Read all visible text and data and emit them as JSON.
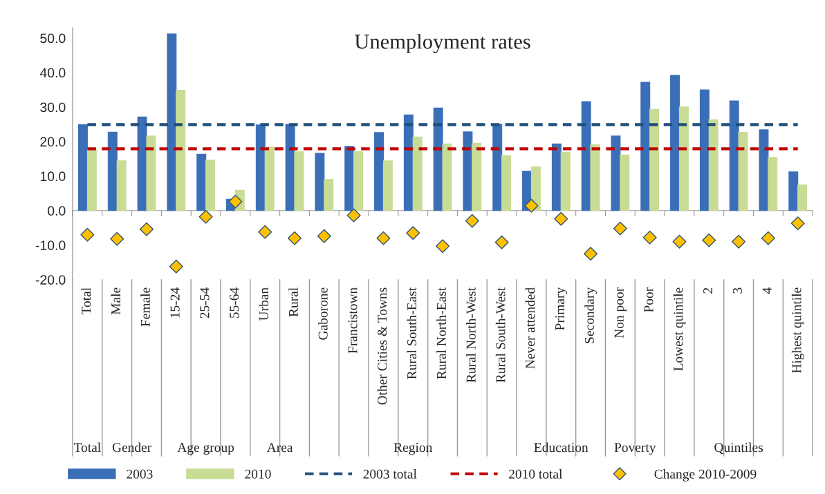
{
  "chart_data": {
    "type": "bar",
    "title": "Unemployment rates",
    "categories": [
      "Total",
      "Male",
      "Female",
      "15-24",
      "25-54",
      "55-64",
      "Urban",
      "Rural",
      "Gaborone",
      "Francistown",
      "Other Cities & Towns",
      "Rural South-East",
      "Rural North-East",
      "Rural North-West",
      "Rural South-West",
      "Never attended",
      "Primary",
      "Secondary",
      "Non poor",
      "Poor",
      "Lowest quintile",
      "2",
      "3",
      "4",
      "Highest quintile"
    ],
    "series": [
      {
        "name": "2003",
        "color": "#3a6fb8",
        "values": [
          24.9,
          22.7,
          27.1,
          51.2,
          16.3,
          3.3,
          24.8,
          25.0,
          16.6,
          18.6,
          22.6,
          27.7,
          29.7,
          22.8,
          25.0,
          11.4,
          19.3,
          31.6,
          21.6,
          37.2,
          39.2,
          35.0,
          31.8,
          23.4,
          11.2
        ]
      },
      {
        "name": "2010",
        "color": "#c9dc95",
        "values": [
          17.9,
          14.4,
          21.6,
          34.9,
          14.6,
          5.9,
          18.4,
          17.1,
          9.0,
          17.1,
          14.4,
          21.3,
          19.3,
          19.5,
          15.9,
          12.7,
          16.9,
          19.1,
          16.1,
          29.3,
          30.0,
          26.3,
          22.7,
          15.4,
          7.4
        ]
      },
      {
        "name": "Change 2010-2009",
        "type": "scatter",
        "marker": "diamond",
        "color": "#ffc000",
        "values": [
          -7.0,
          -8.2,
          -5.4,
          -16.2,
          -1.8,
          2.6,
          -6.2,
          -8.0,
          -7.4,
          -1.4,
          -8.0,
          -6.5,
          -10.3,
          -3.0,
          -9.2,
          1.4,
          -2.4,
          -12.5,
          -5.2,
          -7.8,
          -9.0,
          -8.6,
          -9.0,
          -8.0,
          -3.7
        ]
      }
    ],
    "ref_lines": [
      {
        "axis": "y",
        "value": 24.9,
        "label": "2003 total",
        "color": "#1f4e79",
        "line_style": "dashed"
      },
      {
        "axis": "y",
        "value": 17.9,
        "label": "2010 total",
        "color": "#c00000",
        "line_style": "dashed"
      }
    ],
    "annotations": [
      "Total",
      "Gender",
      "Age group",
      "Area",
      "Region",
      "Education",
      "Poverty",
      "Quintiles"
    ],
    "ylim": [
      -20,
      53
    ],
    "yticks": [
      {
        "value": -20,
        "label": "-20.0"
      },
      {
        "value": -10,
        "label": "-10.0"
      },
      {
        "value": 0,
        "label": "0.0"
      },
      {
        "value": 10,
        "label": "10.0"
      },
      {
        "value": 20,
        "label": "20.0"
      },
      {
        "value": 30,
        "label": "30.0"
      },
      {
        "value": 40,
        "label": "40.0"
      },
      {
        "value": 50,
        "label": "50.0"
      }
    ],
    "legend": "bottom"
  }
}
